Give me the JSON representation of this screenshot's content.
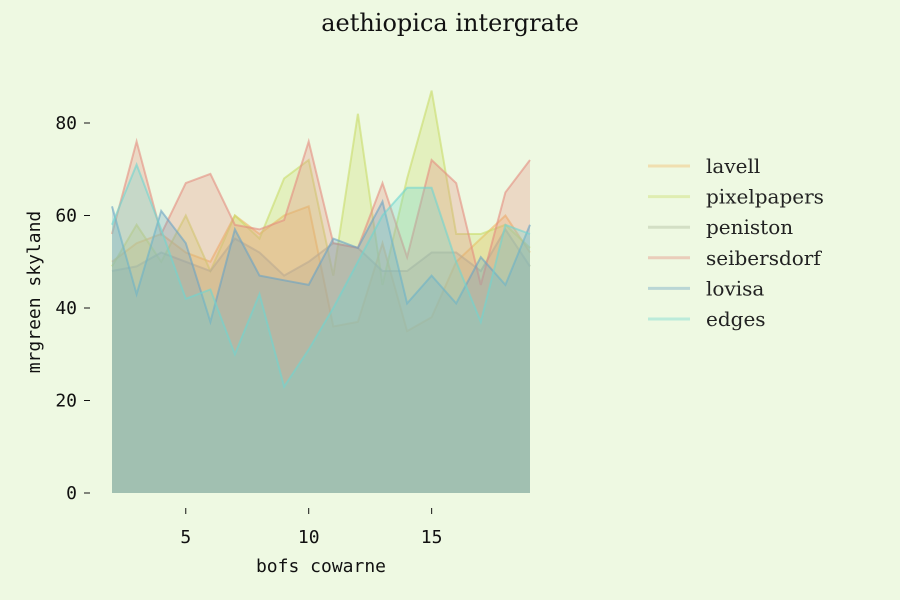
{
  "chart_data": {
    "type": "area",
    "title": "aethiopica intergrate",
    "xlabel": "bofs cowarne",
    "ylabel": "mrgreen skyland",
    "xlim": [
      2,
      19
    ],
    "ylim": [
      0,
      90
    ],
    "x_ticks": [
      5,
      10,
      15
    ],
    "y_ticks": [
      0,
      20,
      40,
      60,
      80
    ],
    "grid": false,
    "legend_position": "right",
    "x": [
      2,
      3,
      4,
      5,
      6,
      7,
      8,
      9,
      10,
      11,
      12,
      13,
      14,
      15,
      16,
      17,
      18,
      19
    ],
    "series": [
      {
        "name": "lavell",
        "color": "#f2b866",
        "values": [
          50,
          54,
          56,
          52,
          50,
          60,
          56,
          60,
          62,
          36,
          37,
          54,
          35,
          38,
          50,
          55,
          60,
          52
        ]
      },
      {
        "name": "pixelpapers",
        "color": "#c9dc6a",
        "values": [
          49,
          58,
          50,
          60,
          48,
          60,
          55,
          68,
          72,
          47,
          82,
          45,
          68,
          87,
          56,
          56,
          58,
          53
        ]
      },
      {
        "name": "peniston",
        "color": "#aab89a",
        "values": [
          48,
          49,
          52,
          50,
          48,
          55,
          52,
          47,
          50,
          54,
          53,
          48,
          48,
          52,
          52,
          48,
          57,
          49
        ]
      },
      {
        "name": "seibersdorf",
        "color": "#e48d80",
        "values": [
          56,
          76,
          56,
          67,
          69,
          58,
          57,
          59,
          76,
          54,
          53,
          67,
          51,
          72,
          67,
          45,
          65,
          72
        ]
      },
      {
        "name": "lovisa",
        "color": "#6aa3c4",
        "values": [
          62,
          43,
          61,
          54,
          37,
          57,
          47,
          46,
          45,
          55,
          53,
          63,
          41,
          47,
          41,
          51,
          45,
          58
        ]
      },
      {
        "name": "edges",
        "color": "#6fd6d0",
        "values": [
          58,
          71,
          57,
          42,
          44,
          30,
          43,
          23,
          31,
          40,
          50,
          60,
          66,
          66,
          50,
          37,
          58,
          56
        ]
      }
    ]
  }
}
